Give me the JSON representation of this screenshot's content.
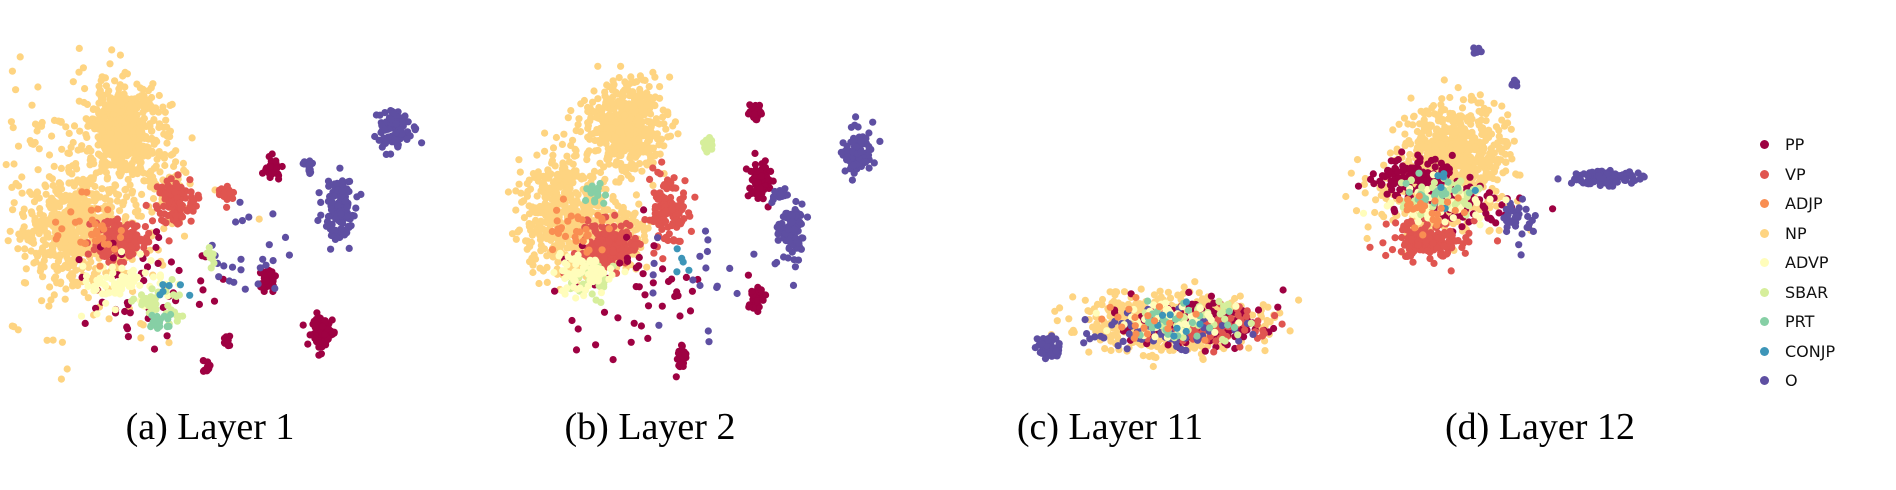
{
  "colors": {
    "PP": "#9e0142",
    "VP": "#e05550",
    "ADJP": "#f98e52",
    "NP": "#fed481",
    "ADVP": "#fffdbb",
    "SBAR": "#d6ee9b",
    "PRT": "#86cfa5",
    "CONJP": "#3d95b8",
    "O": "#5e4fa2"
  },
  "legend": [
    "PP",
    "VP",
    "ADJP",
    "NP",
    "ADVP",
    "SBAR",
    "PRT",
    "CONJP",
    "O"
  ],
  "chart_data": [
    {
      "type": "scatter",
      "title": "(a) Layer 1",
      "categories": [
        "PP",
        "VP",
        "ADJP",
        "NP",
        "ADVP",
        "SBAR",
        "PRT",
        "CONJP",
        "O"
      ],
      "xlabel": "",
      "ylabel": "",
      "grid": false,
      "axes": "hidden",
      "clusters": [
        {
          "cls": "NP",
          "x": 0.27,
          "y": 0.26,
          "rx": 0.09,
          "ry": 0.14,
          "n": 520
        },
        {
          "cls": "NP",
          "x": 0.17,
          "y": 0.55,
          "rx": 0.13,
          "ry": 0.16,
          "n": 520
        },
        {
          "cls": "NP",
          "x": 0.15,
          "y": 0.45,
          "rx": 0.16,
          "ry": 0.27,
          "n": 220,
          "sparse": true
        },
        {
          "cls": "NP",
          "x": 0.37,
          "y": 0.42,
          "rx": 0.07,
          "ry": 0.1,
          "n": 70
        },
        {
          "cls": "VP",
          "x": 0.26,
          "y": 0.58,
          "rx": 0.07,
          "ry": 0.06,
          "n": 170
        },
        {
          "cls": "VP",
          "x": 0.39,
          "y": 0.47,
          "rx": 0.05,
          "ry": 0.08,
          "n": 90
        },
        {
          "cls": "VP",
          "x": 0.5,
          "y": 0.45,
          "rx": 0.02,
          "ry": 0.03,
          "n": 18
        },
        {
          "cls": "PP",
          "x": 0.33,
          "y": 0.72,
          "rx": 0.12,
          "ry": 0.11,
          "n": 50,
          "sparse": true
        },
        {
          "cls": "PP",
          "x": 0.61,
          "y": 0.37,
          "rx": 0.018,
          "ry": 0.03,
          "n": 35
        },
        {
          "cls": "PP",
          "x": 0.6,
          "y": 0.69,
          "rx": 0.022,
          "ry": 0.035,
          "n": 45
        },
        {
          "cls": "PP",
          "x": 0.72,
          "y": 0.85,
          "rx": 0.03,
          "ry": 0.055,
          "n": 70
        },
        {
          "cls": "PP",
          "x": 0.46,
          "y": 0.95,
          "rx": 0.012,
          "ry": 0.025,
          "n": 14
        },
        {
          "cls": "PP",
          "x": 0.5,
          "y": 0.87,
          "rx": 0.012,
          "ry": 0.02,
          "n": 10
        },
        {
          "cls": "O",
          "x": 0.76,
          "y": 0.5,
          "rx": 0.04,
          "ry": 0.1,
          "n": 110
        },
        {
          "cls": "O",
          "x": 0.88,
          "y": 0.26,
          "rx": 0.045,
          "ry": 0.07,
          "n": 110
        },
        {
          "cls": "O",
          "x": 0.69,
          "y": 0.37,
          "rx": 0.015,
          "ry": 0.025,
          "n": 15
        },
        {
          "cls": "O",
          "x": 0.55,
          "y": 0.6,
          "rx": 0.06,
          "ry": 0.12,
          "n": 25,
          "sparse": true
        },
        {
          "cls": "ADVP",
          "x": 0.28,
          "y": 0.7,
          "rx": 0.1,
          "ry": 0.07,
          "n": 80
        },
        {
          "cls": "SBAR",
          "x": 0.34,
          "y": 0.77,
          "rx": 0.06,
          "ry": 0.06,
          "n": 40
        },
        {
          "cls": "SBAR",
          "x": 0.47,
          "y": 0.63,
          "rx": 0.015,
          "ry": 0.03,
          "n": 12
        },
        {
          "cls": "PRT",
          "x": 0.35,
          "y": 0.82,
          "rx": 0.03,
          "ry": 0.03,
          "n": 18
        },
        {
          "cls": "ADJP",
          "x": 0.2,
          "y": 0.55,
          "rx": 0.08,
          "ry": 0.1,
          "n": 35
        },
        {
          "cls": "CONJP",
          "x": 0.37,
          "y": 0.72,
          "rx": 0.04,
          "ry": 0.05,
          "n": 6
        }
      ]
    },
    {
      "type": "scatter",
      "title": "(b) Layer 2",
      "categories": [
        "PP",
        "VP",
        "ADJP",
        "NP",
        "ADVP",
        "SBAR",
        "PRT",
        "CONJP",
        "O"
      ],
      "xlabel": "",
      "ylabel": "",
      "grid": false,
      "axes": "hidden",
      "clusters": [
        {
          "cls": "NP",
          "x": 0.27,
          "y": 0.25,
          "rx": 0.1,
          "ry": 0.14,
          "n": 500
        },
        {
          "cls": "NP",
          "x": 0.13,
          "y": 0.5,
          "rx": 0.1,
          "ry": 0.2,
          "n": 450
        },
        {
          "cls": "NP",
          "x": 0.25,
          "y": 0.55,
          "rx": 0.08,
          "ry": 0.12,
          "n": 160
        },
        {
          "cls": "VP",
          "x": 0.24,
          "y": 0.6,
          "rx": 0.07,
          "ry": 0.08,
          "n": 190
        },
        {
          "cls": "VP",
          "x": 0.37,
          "y": 0.5,
          "rx": 0.05,
          "ry": 0.12,
          "n": 110
        },
        {
          "cls": "PP",
          "x": 0.58,
          "y": 0.41,
          "rx": 0.025,
          "ry": 0.06,
          "n": 70
        },
        {
          "cls": "PP",
          "x": 0.57,
          "y": 0.21,
          "rx": 0.015,
          "ry": 0.03,
          "n": 25
        },
        {
          "cls": "PP",
          "x": 0.57,
          "y": 0.75,
          "rx": 0.02,
          "ry": 0.04,
          "n": 35
        },
        {
          "cls": "PP",
          "x": 0.4,
          "y": 0.92,
          "rx": 0.012,
          "ry": 0.035,
          "n": 30
        },
        {
          "cls": "PP",
          "x": 0.3,
          "y": 0.72,
          "rx": 0.12,
          "ry": 0.12,
          "n": 45,
          "sparse": true
        },
        {
          "cls": "O",
          "x": 0.8,
          "y": 0.33,
          "rx": 0.035,
          "ry": 0.08,
          "n": 100
        },
        {
          "cls": "O",
          "x": 0.65,
          "y": 0.55,
          "rx": 0.035,
          "ry": 0.1,
          "n": 90
        },
        {
          "cls": "O",
          "x": 0.62,
          "y": 0.45,
          "rx": 0.015,
          "ry": 0.025,
          "n": 12
        },
        {
          "cls": "O",
          "x": 0.45,
          "y": 0.7,
          "rx": 0.1,
          "ry": 0.15,
          "n": 20,
          "sparse": true
        },
        {
          "cls": "SBAR",
          "x": 0.46,
          "y": 0.3,
          "rx": 0.015,
          "ry": 0.025,
          "n": 18
        },
        {
          "cls": "SBAR",
          "x": 0.2,
          "y": 0.7,
          "rx": 0.06,
          "ry": 0.06,
          "n": 30
        },
        {
          "cls": "ADVP",
          "x": 0.18,
          "y": 0.68,
          "rx": 0.08,
          "ry": 0.07,
          "n": 70
        },
        {
          "cls": "PRT",
          "x": 0.21,
          "y": 0.44,
          "rx": 0.03,
          "ry": 0.04,
          "n": 14
        },
        {
          "cls": "ADJP",
          "x": 0.16,
          "y": 0.55,
          "rx": 0.08,
          "ry": 0.1,
          "n": 30
        },
        {
          "cls": "CONJP",
          "x": 0.38,
          "y": 0.66,
          "rx": 0.04,
          "ry": 0.04,
          "n": 5
        }
      ]
    },
    {
      "type": "scatter",
      "title": "(c) Layer 11",
      "categories": [
        "PP",
        "VP",
        "ADJP",
        "NP",
        "ADVP",
        "SBAR",
        "PRT",
        "CONJP",
        "O"
      ],
      "xlabel": "",
      "ylabel": "",
      "grid": false,
      "axes": "hidden",
      "clusters": [
        {
          "cls": "NP",
          "x": 0.5,
          "y": 0.82,
          "rx": 0.28,
          "ry": 0.085,
          "n": 650
        },
        {
          "cls": "PP",
          "x": 0.6,
          "y": 0.82,
          "rx": 0.22,
          "ry": 0.07,
          "n": 200
        },
        {
          "cls": "VP",
          "x": 0.62,
          "y": 0.83,
          "rx": 0.2,
          "ry": 0.06,
          "n": 90
        },
        {
          "cls": "O",
          "x": 0.12,
          "y": 0.89,
          "rx": 0.04,
          "ry": 0.03,
          "n": 60
        },
        {
          "cls": "O",
          "x": 0.47,
          "y": 0.84,
          "rx": 0.25,
          "ry": 0.06,
          "n": 70
        },
        {
          "cls": "SBAR",
          "x": 0.58,
          "y": 0.82,
          "rx": 0.2,
          "ry": 0.06,
          "n": 40
        },
        {
          "cls": "ADVP",
          "x": 0.5,
          "y": 0.81,
          "rx": 0.2,
          "ry": 0.06,
          "n": 50
        },
        {
          "cls": "PRT",
          "x": 0.55,
          "y": 0.82,
          "rx": 0.2,
          "ry": 0.06,
          "n": 25
        },
        {
          "cls": "CONJP",
          "x": 0.5,
          "y": 0.82,
          "rx": 0.18,
          "ry": 0.06,
          "n": 8
        },
        {
          "cls": "ADJP",
          "x": 0.45,
          "y": 0.82,
          "rx": 0.2,
          "ry": 0.06,
          "n": 20
        }
      ]
    },
    {
      "type": "scatter",
      "title": "(d) Layer 12",
      "categories": [
        "PP",
        "VP",
        "ADJP",
        "NP",
        "ADVP",
        "SBAR",
        "PRT",
        "CONJP",
        "O"
      ],
      "xlabel": "",
      "ylabel": "",
      "grid": false,
      "axes": "hidden",
      "clusters": [
        {
          "cls": "NP",
          "x": 0.3,
          "y": 0.31,
          "rx": 0.16,
          "ry": 0.13,
          "n": 500
        },
        {
          "cls": "NP",
          "x": 0.27,
          "y": 0.45,
          "rx": 0.22,
          "ry": 0.13,
          "n": 300
        },
        {
          "cls": "PP",
          "x": 0.2,
          "y": 0.4,
          "rx": 0.12,
          "ry": 0.06,
          "n": 160
        },
        {
          "cls": "PP",
          "x": 0.32,
          "y": 0.48,
          "rx": 0.16,
          "ry": 0.06,
          "n": 80
        },
        {
          "cls": "VP",
          "x": 0.23,
          "y": 0.58,
          "rx": 0.12,
          "ry": 0.06,
          "n": 160
        },
        {
          "cls": "O",
          "x": 0.73,
          "y": 0.4,
          "rx": 0.1,
          "ry": 0.022,
          "n": 110
        },
        {
          "cls": "O",
          "x": 0.48,
          "y": 0.53,
          "rx": 0.05,
          "ry": 0.08,
          "n": 35
        },
        {
          "cls": "O",
          "x": 0.37,
          "y": 0.03,
          "rx": 0.015,
          "ry": 0.015,
          "n": 10
        },
        {
          "cls": "O",
          "x": 0.47,
          "y": 0.13,
          "rx": 0.01,
          "ry": 0.015,
          "n": 5
        },
        {
          "cls": "ADVP",
          "x": 0.27,
          "y": 0.47,
          "rx": 0.16,
          "ry": 0.06,
          "n": 70
        },
        {
          "cls": "SBAR",
          "x": 0.28,
          "y": 0.44,
          "rx": 0.14,
          "ry": 0.06,
          "n": 40
        },
        {
          "cls": "PRT",
          "x": 0.25,
          "y": 0.44,
          "rx": 0.12,
          "ry": 0.05,
          "n": 22
        },
        {
          "cls": "CONJP",
          "x": 0.3,
          "y": 0.43,
          "rx": 0.1,
          "ry": 0.05,
          "n": 6
        },
        {
          "cls": "ADJP",
          "x": 0.22,
          "y": 0.5,
          "rx": 0.12,
          "ry": 0.06,
          "n": 25
        }
      ]
    }
  ]
}
